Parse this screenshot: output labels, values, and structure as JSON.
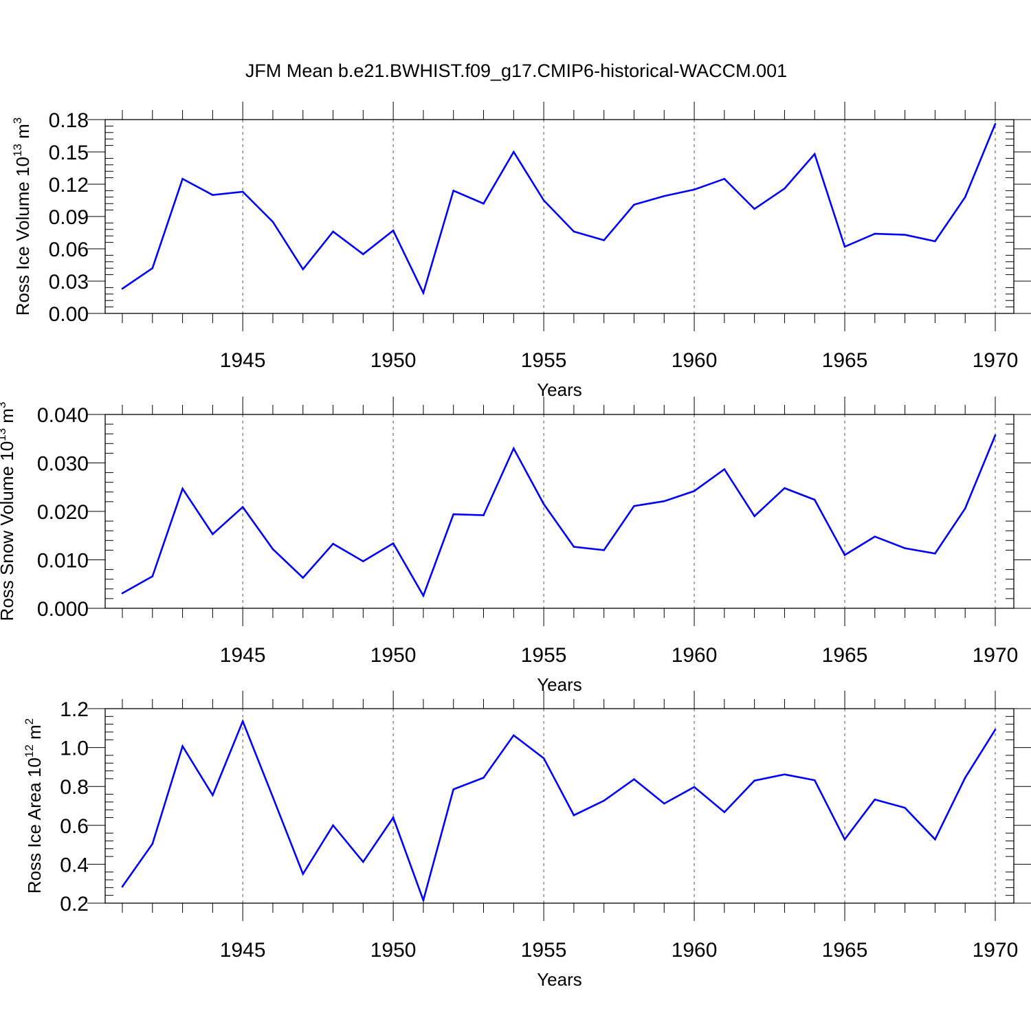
{
  "title": "JFM Mean b.e21.BWHIST.f09_g17.CMIP6-historical-WACCM.001",
  "colors": {
    "line": "#0000ff",
    "axis": "#000000",
    "grid": "#555555"
  },
  "chart_data": [
    {
      "type": "line",
      "xlabel": "Years",
      "ylabel": {
        "text": "Ross Ice Volume 10",
        "exp": "13",
        "unit": " m",
        "unit_exp": "3"
      },
      "xlim": [
        1941,
        1970
      ],
      "ylim": [
        0.0,
        0.18
      ],
      "xticks": [
        1945,
        1950,
        1955,
        1960,
        1965,
        1970
      ],
      "xtick_labels": [
        "1945",
        "1950",
        "1955",
        "1960",
        "1965",
        "1970"
      ],
      "yticks": [
        0.0,
        0.03,
        0.06,
        0.09,
        0.12,
        0.15,
        0.18
      ],
      "ytick_labels": [
        "0.00",
        "0.03",
        "0.06",
        "0.09",
        "0.12",
        "0.15",
        "0.18"
      ],
      "grid": "dashed vertical at major x ticks",
      "x": [
        1941,
        1942,
        1943,
        1944,
        1945,
        1946,
        1947,
        1948,
        1949,
        1950,
        1951,
        1952,
        1953,
        1954,
        1955,
        1956,
        1957,
        1958,
        1959,
        1960,
        1961,
        1962,
        1963,
        1964,
        1965,
        1966,
        1967,
        1968,
        1969,
        1970
      ],
      "values": [
        0.023,
        0.042,
        0.125,
        0.11,
        0.113,
        0.085,
        0.041,
        0.076,
        0.055,
        0.077,
        0.019,
        0.114,
        0.102,
        0.15,
        0.105,
        0.076,
        0.068,
        0.101,
        0.109,
        0.115,
        0.125,
        0.097,
        0.116,
        0.148,
        0.062,
        0.074,
        0.073,
        0.067,
        0.108,
        0.176
      ]
    },
    {
      "type": "line",
      "xlabel": "Years",
      "ylabel": {
        "text": "Ross Snow Volume 10",
        "exp": "13",
        "unit": " m",
        "unit_exp": "3"
      },
      "xlim": [
        1941,
        1970
      ],
      "ylim": [
        0.0,
        0.04
      ],
      "xticks": [
        1945,
        1950,
        1955,
        1960,
        1965,
        1970
      ],
      "xtick_labels": [
        "1945",
        "1950",
        "1955",
        "1960",
        "1965",
        "1970"
      ],
      "yticks": [
        0.0,
        0.01,
        0.02,
        0.03,
        0.04
      ],
      "ytick_labels": [
        "0.000",
        "0.010",
        "0.020",
        "0.030",
        "0.040"
      ],
      "grid": "dashed vertical at major x ticks",
      "x": [
        1941,
        1942,
        1943,
        1944,
        1945,
        1946,
        1947,
        1948,
        1949,
        1950,
        1951,
        1952,
        1953,
        1954,
        1955,
        1956,
        1957,
        1958,
        1959,
        1960,
        1961,
        1962,
        1963,
        1964,
        1965,
        1966,
        1967,
        1968,
        1969,
        1970
      ],
      "values": [
        0.0031,
        0.0066,
        0.0247,
        0.0153,
        0.0209,
        0.0122,
        0.0063,
        0.0133,
        0.0097,
        0.0134,
        0.0026,
        0.0194,
        0.0192,
        0.033,
        0.0215,
        0.0127,
        0.012,
        0.0211,
        0.0221,
        0.0242,
        0.0287,
        0.019,
        0.0248,
        0.0224,
        0.011,
        0.0148,
        0.0124,
        0.0113,
        0.0206,
        0.0357
      ]
    },
    {
      "type": "line",
      "xlabel": "Years",
      "ylabel": {
        "text": "Ross Ice Area 10",
        "exp": "12",
        "unit": " m",
        "unit_exp": "2"
      },
      "xlim": [
        1941,
        1970
      ],
      "ylim": [
        0.2,
        1.2
      ],
      "xticks": [
        1945,
        1950,
        1955,
        1960,
        1965,
        1970
      ],
      "xtick_labels": [
        "1945",
        "1950",
        "1955",
        "1960",
        "1965",
        "1970"
      ],
      "yticks": [
        0.2,
        0.4,
        0.6,
        0.8,
        1.0,
        1.2
      ],
      "ytick_labels": [
        "0.2",
        "0.4",
        "0.6",
        "0.8",
        "1.0",
        "1.2"
      ],
      "grid": "dashed vertical at major x ticks",
      "x": [
        1941,
        1942,
        1943,
        1944,
        1945,
        1946,
        1947,
        1948,
        1949,
        1950,
        1951,
        1952,
        1953,
        1954,
        1955,
        1956,
        1957,
        1958,
        1959,
        1960,
        1961,
        1962,
        1963,
        1964,
        1965,
        1966,
        1967,
        1968,
        1969,
        1970
      ],
      "values": [
        0.285,
        0.505,
        1.007,
        0.755,
        1.135,
        0.745,
        0.35,
        0.6,
        0.412,
        0.64,
        0.215,
        0.785,
        0.845,
        1.063,
        0.945,
        0.652,
        0.727,
        0.837,
        0.712,
        0.797,
        0.668,
        0.83,
        0.862,
        0.832,
        0.528,
        0.733,
        0.69,
        0.528,
        0.845,
        1.092
      ]
    }
  ]
}
